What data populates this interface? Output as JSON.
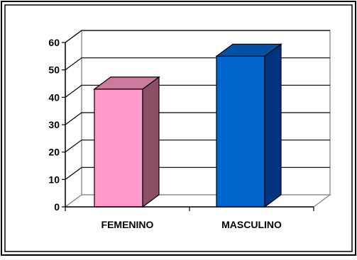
{
  "chart_data": {
    "type": "bar",
    "style": "3d",
    "categories": [
      "FEMENINO",
      "MASCULINO"
    ],
    "values": [
      43,
      55
    ],
    "ylim": [
      0,
      60
    ],
    "yticks": [
      0,
      10,
      20,
      30,
      40,
      50,
      60
    ],
    "grid": true,
    "legend": "none",
    "title": "",
    "xlabel": "",
    "ylabel": "",
    "colors": {
      "FEMENINO": {
        "front": "#ff99cc",
        "side": "#8c5066",
        "top": "#cc7a9e"
      },
      "MASCULINO": {
        "front": "#0066cc",
        "side": "#003380",
        "top": "#0052a3"
      }
    }
  }
}
